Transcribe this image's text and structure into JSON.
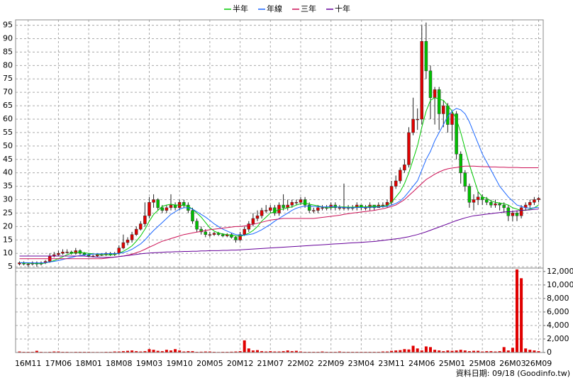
{
  "chart_data": [
    {
      "type": "candlestick",
      "source": "資料日期: 09/18  (Goodinfo.tw)",
      "categories": [
        null,
        null,
        "16M11",
        null,
        null,
        null,
        null,
        null,
        null,
        "17M06",
        null,
        null,
        null,
        null,
        null,
        null,
        "18M01",
        null,
        null,
        null,
        null,
        null,
        null,
        "18M08",
        null,
        null,
        null,
        null,
        null,
        null,
        "19M03",
        null,
        null,
        null,
        null,
        null,
        null,
        "19M10",
        null,
        null,
        null,
        null,
        null,
        null,
        "20M05",
        null,
        null,
        null,
        null,
        null,
        null,
        "20M12",
        null,
        null,
        null,
        null,
        null,
        null,
        "21M07",
        null,
        null,
        null,
        null,
        null,
        null,
        "22M02",
        null,
        null,
        null,
        null,
        null,
        null,
        "22M09",
        null,
        null,
        null,
        null,
        null,
        null,
        "23M04",
        null,
        null,
        null,
        null,
        null,
        null,
        "23M11",
        null,
        null,
        null,
        null,
        null,
        null,
        "24M06",
        null,
        null,
        null,
        null,
        null,
        null,
        "25M01",
        null,
        null,
        null,
        null,
        null,
        null,
        "25M08",
        null,
        null,
        null,
        null,
        null,
        null,
        "26M03",
        null,
        null,
        null,
        null,
        null,
        "26M09"
      ],
      "open": [
        6,
        6.5,
        6,
        6,
        6.5,
        6,
        6.5,
        7,
        9,
        9.5,
        10,
        10.5,
        10.5,
        10,
        11,
        10,
        9.5,
        9,
        9,
        9.5,
        9.5,
        10,
        9.5,
        10,
        12,
        14,
        15,
        17,
        19,
        21,
        24,
        29,
        30,
        27,
        26,
        27,
        28,
        27,
        29,
        28,
        26,
        22,
        19,
        18,
        17,
        17,
        17.5,
        17,
        16.5,
        17,
        16,
        15,
        17,
        19,
        21,
        23,
        24,
        26,
        26,
        27,
        25,
        28,
        27,
        28,
        29,
        29,
        30,
        28,
        26,
        26,
        27,
        27,
        27,
        28,
        27,
        27,
        27,
        27,
        27,
        28,
        27,
        27,
        28,
        27,
        28,
        28,
        29,
        35,
        37,
        41,
        43,
        55,
        60,
        60,
        89,
        78,
        68,
        71,
        62,
        65,
        58,
        62,
        47,
        40,
        35,
        29,
        30,
        31,
        30,
        29,
        28,
        28.5,
        28,
        27,
        24,
        25,
        24,
        27,
        28,
        29,
        30
      ],
      "high": [
        7,
        7,
        6.5,
        7,
        7,
        7,
        7.5,
        10,
        10.5,
        11,
        11.5,
        11.5,
        11,
        12,
        11.5,
        10.5,
        10,
        9.5,
        10,
        10,
        10.5,
        10.5,
        10.5,
        13,
        17,
        16,
        18,
        20,
        22,
        29,
        31,
        32,
        30.5,
        28,
        28,
        32,
        29,
        30,
        30,
        29,
        27,
        23,
        20,
        19,
        18,
        18,
        18,
        17.5,
        17.5,
        17.5,
        16.5,
        18,
        20,
        22,
        25,
        26,
        27,
        28,
        28,
        28,
        29,
        32,
        30,
        30,
        30,
        31,
        31,
        29,
        27,
        28,
        28,
        28,
        29,
        29,
        28,
        36,
        28,
        28,
        29,
        28,
        28,
        29,
        28,
        29,
        29,
        30,
        37,
        39,
        42,
        45,
        57,
        68,
        64,
        95,
        96,
        80,
        72,
        72,
        67,
        66,
        63,
        63,
        48,
        41,
        36,
        32,
        33,
        32,
        31,
        30,
        30,
        29,
        29,
        28,
        26,
        26,
        28,
        29,
        30,
        31,
        31
      ],
      "low": [
        5.5,
        5.5,
        5,
        5.5,
        5,
        5.5,
        6,
        6.5,
        8.5,
        9,
        9.5,
        10,
        9.5,
        9.5,
        9.5,
        9,
        8.5,
        8.5,
        8.5,
        9,
        9,
        9,
        9,
        9.5,
        11.5,
        13,
        14,
        16.5,
        18.5,
        20,
        23,
        27,
        26,
        25,
        25,
        26,
        26,
        26,
        27,
        25,
        21,
        18,
        17,
        16,
        16,
        16.5,
        16.5,
        16,
        16,
        15.5,
        14,
        14.5,
        16.5,
        18,
        20,
        22,
        23,
        25,
        25,
        24,
        24,
        26,
        26,
        27,
        28,
        28,
        27,
        25,
        25,
        25,
        26,
        26,
        26,
        26,
        26,
        26,
        26,
        26,
        26,
        26,
        26,
        26,
        26,
        27,
        27,
        27,
        28,
        34,
        36,
        40,
        42,
        54,
        56,
        58,
        75,
        60,
        58,
        56,
        57,
        55,
        52,
        45,
        36,
        33,
        27,
        26,
        28,
        28,
        28,
        27,
        27,
        26,
        25,
        22,
        22,
        22,
        23,
        26,
        27,
        28,
        29
      ],
      "close": [
        6.5,
        6,
        6,
        6.5,
        6,
        6.5,
        7,
        9,
        9.5,
        10,
        10.5,
        10.5,
        10,
        11,
        10,
        9.5,
        9,
        9,
        9.5,
        9.5,
        10,
        9.5,
        10,
        12,
        14,
        15,
        17,
        19,
        21,
        24,
        29,
        30,
        27,
        26,
        27,
        28,
        27,
        29,
        28,
        26,
        22,
        19,
        18,
        17,
        17,
        17.5,
        17,
        16.5,
        17,
        16,
        15,
        17,
        19,
        21,
        23,
        24,
        26,
        26,
        27,
        25,
        28,
        27,
        28,
        29,
        29,
        30,
        28,
        26,
        26,
        27,
        27,
        27,
        28,
        27,
        27,
        27,
        27,
        27,
        28,
        27,
        27,
        28,
        27,
        28,
        28,
        29,
        35,
        37,
        41,
        43,
        55,
        60,
        60,
        89,
        78,
        68,
        71,
        62,
        65,
        58,
        62,
        47,
        40,
        35,
        29,
        30,
        31,
        30,
        29,
        28,
        28.5,
        28,
        27,
        24,
        25,
        24,
        27,
        28,
        29,
        30,
        30.5
      ],
      "up_color": "#e00000",
      "down_color": "#00c000",
      "series": [
        {
          "name": "半年",
          "color": "#00c800",
          "values": [
            6.5,
            6.5,
            6.3,
            6.3,
            6.2,
            6.2,
            6.4,
            6.8,
            7.3,
            8,
            8.7,
            9.5,
            10,
            10.3,
            10.3,
            10.2,
            10,
            9.8,
            9.6,
            9.5,
            9.5,
            9.4,
            9.6,
            10,
            10.8,
            11.7,
            12.8,
            14.5,
            16.5,
            19,
            22,
            24.5,
            26,
            27.5,
            28,
            28.3,
            28,
            28,
            27.8,
            27.5,
            26.5,
            25,
            23.5,
            21.5,
            19.5,
            18.3,
            17.6,
            17.2,
            17,
            16.8,
            16.5,
            16.4,
            16.8,
            17.5,
            18.5,
            20,
            22,
            23.5,
            25,
            25.5,
            26.3,
            26.5,
            27,
            27.3,
            28,
            28.5,
            28.7,
            28.3,
            28,
            27.7,
            27.3,
            27,
            27,
            27.3,
            27.3,
            27.3,
            27.2,
            27.2,
            27.3,
            27.3,
            27.3,
            27.5,
            27.5,
            27.5,
            27.6,
            27.8,
            29,
            31,
            33,
            36,
            40,
            45,
            50,
            57,
            63,
            67,
            68,
            67.5,
            67,
            65,
            63,
            60,
            55,
            49,
            43,
            38,
            33,
            31,
            30.5,
            29.5,
            29,
            28.8,
            28.5,
            28,
            27,
            26.5,
            26,
            26,
            26.5,
            27,
            28
          ]
        },
        {
          "name": "年線",
          "color": "#1a66ff",
          "values": [
            6.5,
            6.5,
            6.5,
            6.4,
            6.4,
            6.4,
            6.5,
            6.8,
            7,
            7.3,
            7.7,
            8.1,
            8.5,
            8.9,
            9.2,
            9.4,
            9.6,
            9.7,
            9.8,
            9.8,
            9.9,
            9.9,
            9.9,
            10,
            10.3,
            10.8,
            11.5,
            12.5,
            13.5,
            15,
            16.8,
            18.5,
            20,
            21.5,
            23,
            24.5,
            25.5,
            26.5,
            27,
            27,
            26.5,
            25.5,
            24.5,
            23.5,
            22.3,
            21,
            20,
            19,
            18.3,
            17.6,
            17,
            16.8,
            16.8,
            17,
            17.3,
            18,
            18.8,
            19.8,
            20.8,
            22,
            23,
            24,
            25,
            26,
            26.8,
            27.3,
            27.6,
            27.6,
            27.5,
            27.4,
            27.3,
            27.3,
            27.4,
            27.3,
            27.2,
            27.1,
            27,
            27,
            27.1,
            27.1,
            27.1,
            27.2,
            27.2,
            27.3,
            27.4,
            27.5,
            28,
            28.6,
            29.5,
            31,
            33,
            35,
            37,
            41,
            45,
            48,
            52,
            55,
            58,
            61,
            63,
            64,
            63.5,
            62,
            59,
            55,
            51,
            47,
            44,
            41,
            38,
            35,
            33,
            31,
            29.5,
            28,
            27.5,
            27,
            26.8,
            27,
            27.2
          ]
        },
        {
          "name": "三年",
          "color": "#cc1155",
          "values": [
            8,
            8,
            8,
            8,
            8,
            8,
            8,
            8,
            8,
            8,
            8,
            8,
            8,
            8,
            8,
            8,
            8,
            8,
            8,
            8,
            8.2,
            8.4,
            8.6,
            8.8,
            9,
            9.3,
            9.7,
            10.2,
            10.8,
            11.5,
            12.3,
            13,
            13.8,
            14.5,
            15,
            15.5,
            16,
            16.5,
            17,
            17.3,
            17.6,
            17.9,
            18.2,
            18.5,
            18.8,
            19,
            19.2,
            19.4,
            19.6,
            19.8,
            20,
            20,
            20.2,
            20.5,
            20.8,
            21.2,
            21.6,
            22,
            22.4,
            22.6,
            22.8,
            23,
            23,
            23,
            23,
            23,
            23,
            23,
            23,
            23.2,
            23.4,
            23.6,
            23.8,
            24,
            24.2,
            24.5,
            24.8,
            25,
            25.2,
            25.4,
            25.6,
            25.8,
            26,
            26.3,
            26.6,
            27,
            27.5,
            28,
            29,
            30,
            31.5,
            33,
            34.5,
            36,
            37.5,
            38.5,
            39.5,
            40.3,
            41,
            41.5,
            41.8,
            42,
            42.3,
            42.5,
            42.5,
            42.5,
            42.4,
            42.3,
            42.3,
            42.2,
            42.2,
            42.1,
            42.1,
            42,
            42,
            42,
            41.9,
            41.9,
            41.9,
            41.9,
            41.9
          ]
        },
        {
          "name": "十年",
          "color": "#660099",
          "values": [
            9,
            9,
            9,
            9,
            9,
            9,
            9,
            9,
            9,
            9,
            9,
            9,
            9,
            9,
            9,
            9,
            8.8,
            8.7,
            8.6,
            8.5,
            8.5,
            8.5,
            8.6,
            8.8,
            9,
            9.2,
            9.4,
            9.6,
            9.8,
            10,
            10.1,
            10.2,
            10.3,
            10.4,
            10.5,
            10.5,
            10.6,
            10.6,
            10.7,
            10.7,
            10.8,
            10.8,
            10.9,
            10.9,
            11,
            11,
            11,
            11.1,
            11.1,
            11.2,
            11.2,
            11.3,
            11.4,
            11.5,
            11.6,
            11.7,
            11.8,
            11.9,
            12,
            12.1,
            12.2,
            12.3,
            12.4,
            12.5,
            12.6,
            12.7,
            12.8,
            12.9,
            13,
            13.1,
            13.2,
            13.3,
            13.4,
            13.5,
            13.6,
            13.7,
            13.8,
            13.9,
            14,
            14.1,
            14.2,
            14.3,
            14.4,
            14.6,
            14.8,
            15,
            15.2,
            15.4,
            15.6,
            15.9,
            16.2,
            16.6,
            17,
            17.5,
            18,
            18.6,
            19.2,
            19.8,
            20.4,
            21,
            21.6,
            22.2,
            22.7,
            23.2,
            23.6,
            24,
            24.2,
            24.4,
            24.6,
            24.8,
            25,
            25.2,
            25.4,
            25.5,
            25.6,
            25.8,
            26,
            26.1,
            26.2,
            26.4,
            26.5
          ]
        }
      ],
      "ylim": [
        4.5,
        97
      ],
      "yticks": [
        5,
        10,
        15,
        20,
        25,
        30,
        35,
        40,
        45,
        50,
        55,
        60,
        65,
        70,
        75,
        80,
        85,
        90,
        95
      ],
      "grid": true
    },
    {
      "type": "bar",
      "color": "#e00000",
      "values": [
        150,
        100,
        100,
        100,
        250,
        100,
        80,
        100,
        150,
        150,
        100,
        100,
        80,
        100,
        100,
        100,
        100,
        80,
        80,
        80,
        100,
        100,
        150,
        150,
        200,
        250,
        300,
        200,
        150,
        200,
        500,
        400,
        250,
        200,
        400,
        300,
        500,
        300,
        150,
        200,
        200,
        100,
        120,
        150,
        150,
        100,
        80,
        100,
        100,
        120,
        150,
        200,
        1800,
        600,
        300,
        350,
        200,
        150,
        200,
        150,
        150,
        200,
        300,
        200,
        250,
        150,
        100,
        100,
        100,
        100,
        150,
        100,
        100,
        100,
        150,
        100,
        100,
        100,
        100,
        100,
        100,
        100,
        100,
        100,
        150,
        150,
        250,
        300,
        350,
        500,
        450,
        1000,
        600,
        300,
        900,
        800,
        400,
        300,
        200,
        300,
        250,
        300,
        400,
        300,
        200,
        250,
        250,
        150,
        200,
        200,
        150,
        200,
        800,
        300,
        700,
        12300,
        11000,
        600,
        400,
        300,
        200
      ],
      "ylim": [
        0,
        12500
      ],
      "yticks": [
        0,
        {
          "value": 2000,
          "label": "2,000"
        },
        {
          "value": 4000,
          "label": "4,000"
        },
        {
          "value": 6000,
          "label": "6,000"
        },
        {
          "value": 8000,
          "label": "8,000"
        },
        {
          "value": 10000,
          "label": "10,000"
        },
        {
          "value": 12000,
          "label": "12,000"
        }
      ],
      "grid": true
    }
  ]
}
